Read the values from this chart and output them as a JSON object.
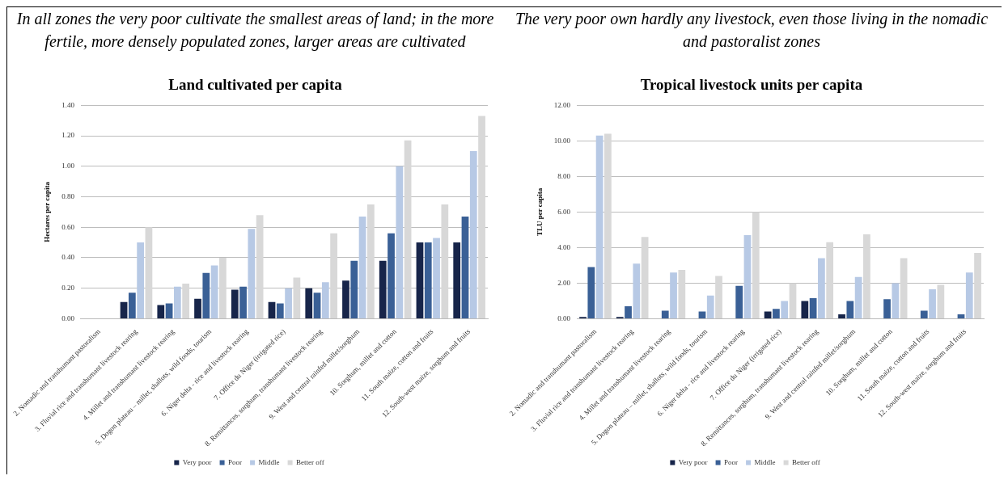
{
  "chart_data": [
    {
      "type": "bar",
      "subtitle": "In all zones the very poor cultivate the smallest areas of land; in the more fertile, more densely populated zones, larger areas are cultivated",
      "title": "Land cultivated per capita",
      "ylabel": "Hectares per capita",
      "categories": [
        "2. Nomadic and transhumant pastoralism",
        "3. Fluvial rice and transhumant livestock rearing",
        "4. Millet and transhumant livestock rearing",
        "5. Dogon plateau – millet, shallots, wild foods, tourism",
        "6. Niger delta - rice and livestock rearing",
        "7. Office du Niger (irrigated rice)",
        "8. Remittances, sorghum, transhumant livestock rearing",
        "9. West and central rainfed millet/sorghum",
        "10. Sorghum, millet and cotton",
        "11. South maize, cotton and fruits",
        "12. South-west maize, sorghum and fruits"
      ],
      "series": [
        {
          "name": "Very poor",
          "color": "#17254a",
          "values": [
            null,
            0.11,
            0.09,
            0.13,
            0.19,
            0.11,
            0.2,
            0.25,
            0.38,
            0.5,
            0.5
          ]
        },
        {
          "name": "Poor",
          "color": "#3a6096",
          "values": [
            null,
            0.17,
            0.1,
            0.3,
            0.21,
            0.1,
            0.17,
            0.38,
            0.56,
            0.5,
            0.67
          ]
        },
        {
          "name": "Middle",
          "color": "#b7c9e5",
          "values": [
            null,
            0.5,
            0.21,
            0.35,
            0.59,
            0.2,
            0.24,
            0.67,
            1.0,
            0.53,
            1.1
          ]
        },
        {
          "name": "Better off",
          "color": "#d8d8d8",
          "values": [
            null,
            0.6,
            0.23,
            0.4,
            0.68,
            0.27,
            0.56,
            0.75,
            1.17,
            0.75,
            1.33
          ]
        }
      ],
      "ylim": [
        0,
        1.4
      ],
      "yticks": [
        {
          "value": 0,
          "label": "0.00"
        },
        {
          "value": 0.2,
          "label": "0.20"
        },
        {
          "value": 0.4,
          "label": "0.40"
        },
        {
          "value": 0.6,
          "label": "0.60"
        },
        {
          "value": 0.8,
          "label": "0.80"
        },
        {
          "value": 1,
          "label": "1.00"
        },
        {
          "value": 1.2,
          "label": "1.20"
        },
        {
          "value": 1.4,
          "label": "1.40"
        }
      ],
      "grid": "y",
      "legend": "bottom"
    },
    {
      "type": "bar",
      "subtitle": "The very poor own hardly any livestock, even those living in the nomadic and pastoralist zones",
      "title": "Tropical livestock units per capita",
      "ylabel": "TLU per capita",
      "categories": [
        "2. Nomadic and transhumant pastoralism",
        "3. Fluvial rice and transhumant livestock rearing",
        "4. Millet and transhumant livestock rearing",
        "5. Dogon plateau – millet, shallots, wild foods, tourism",
        "6. Niger delta - rice and livestock rearing",
        "7. Office du Niger (irrigated rice)",
        "8. Remittances, sorghum, transhumant livestock rearing",
        "9. West and central rainfed millet/sorghum",
        "10. Sorghum, millet and cotton",
        "11. South maize, cotton and fruits",
        "12. South-west maize, sorghum and fruits"
      ],
      "series": [
        {
          "name": "Very poor",
          "color": "#17254a",
          "values": [
            0.1,
            0.1,
            0,
            0,
            0,
            0.4,
            1.0,
            0.25,
            0,
            0,
            0
          ]
        },
        {
          "name": "Poor",
          "color": "#3a6096",
          "values": [
            2.9,
            0.7,
            0.45,
            0.4,
            1.85,
            0.55,
            1.15,
            1.0,
            1.1,
            0.45,
            0.25
          ]
        },
        {
          "name": "Middle",
          "color": "#b7c9e5",
          "values": [
            10.3,
            3.1,
            2.6,
            1.3,
            4.7,
            1.0,
            3.4,
            2.35,
            2.0,
            1.65,
            2.6
          ]
        },
        {
          "name": "Better off",
          "color": "#d8d8d8",
          "values": [
            10.4,
            4.6,
            2.75,
            2.4,
            6.0,
            2.0,
            4.3,
            4.75,
            3.4,
            1.9,
            3.7
          ]
        }
      ],
      "ylim": [
        0,
        12
      ],
      "yticks": [
        {
          "value": 0,
          "label": "0.00"
        },
        {
          "value": 2,
          "label": "2.00"
        },
        {
          "value": 4,
          "label": "4.00"
        },
        {
          "value": 6,
          "label": "6.00"
        },
        {
          "value": 8,
          "label": "8.00"
        },
        {
          "value": 10,
          "label": "10.00"
        },
        {
          "value": 12,
          "label": "12.00"
        }
      ],
      "grid": "y",
      "legend": "bottom"
    }
  ]
}
